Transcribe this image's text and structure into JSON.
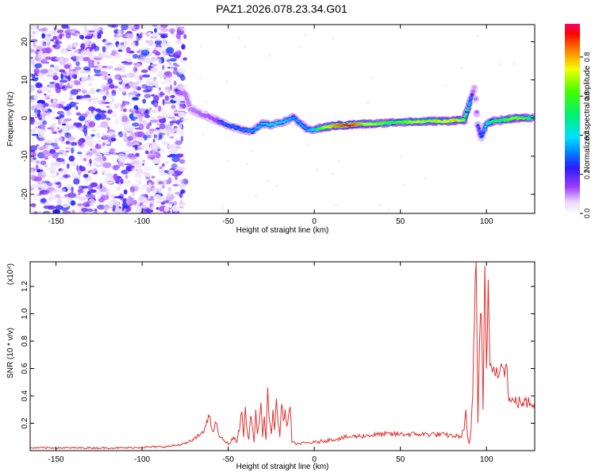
{
  "title": "PAZ1.2026.078.23.34.G01",
  "chart_data": [
    {
      "type": "heatmap",
      "xlabel": "Height of straight line (km)",
      "ylabel": "Frequency (Hz)",
      "xlim": [
        -165,
        128
      ],
      "ylim": [
        -25,
        24.5
      ],
      "xticks": [
        -150,
        -100,
        -50,
        0,
        50,
        100
      ],
      "yticks": [
        -20,
        -10,
        0,
        10,
        20
      ],
      "colorbar": {
        "label": "Normalized spectral amplitude",
        "range": [
          0,
          0.97
        ],
        "ticks": [
          "0.0",
          "0.2",
          "0.4",
          "0.6",
          "0.8"
        ],
        "colormap": "rainbow (white-violet-blue-cyan-green-yellow-red-magenta)"
      },
      "noise_region": [
        -165,
        -75
      ],
      "ridge": [
        {
          "x": -80,
          "f": 7.0,
          "a": 0.3
        },
        {
          "x": -75,
          "f": 6.5,
          "a": 0.25
        },
        {
          "x": -72,
          "f": 2.5,
          "a": 0.22
        },
        {
          "x": -68,
          "f": 1.5,
          "a": 0.25
        },
        {
          "x": -62,
          "f": 0.5,
          "a": 0.28
        },
        {
          "x": -55,
          "f": -1.0,
          "a": 0.3
        },
        {
          "x": -48,
          "f": -2.2,
          "a": 0.3
        },
        {
          "x": -42,
          "f": -3.0,
          "a": 0.32
        },
        {
          "x": -36,
          "f": -3.5,
          "a": 0.35
        },
        {
          "x": -30,
          "f": -1.5,
          "a": 0.4
        },
        {
          "x": -25,
          "f": -1.8,
          "a": 0.45
        },
        {
          "x": -18,
          "f": -1.0,
          "a": 0.4
        },
        {
          "x": -12,
          "f": 0.2,
          "a": 0.35
        },
        {
          "x": -8,
          "f": -1.5,
          "a": 0.35
        },
        {
          "x": -4,
          "f": -3.0,
          "a": 0.35
        },
        {
          "x": 0,
          "f": -3.0,
          "a": 0.45
        },
        {
          "x": 5,
          "f": -2.5,
          "a": 0.7
        },
        {
          "x": 12,
          "f": -2.0,
          "a": 0.85
        },
        {
          "x": 20,
          "f": -1.8,
          "a": 0.95
        },
        {
          "x": 28,
          "f": -1.6,
          "a": 0.8
        },
        {
          "x": 36,
          "f": -1.5,
          "a": 0.7
        },
        {
          "x": 44,
          "f": -1.2,
          "a": 0.6
        },
        {
          "x": 52,
          "f": -1.0,
          "a": 0.65
        },
        {
          "x": 60,
          "f": -1.0,
          "a": 0.75
        },
        {
          "x": 68,
          "f": -0.8,
          "a": 0.7
        },
        {
          "x": 76,
          "f": -0.8,
          "a": 0.75
        },
        {
          "x": 82,
          "f": -0.6,
          "a": 0.8
        },
        {
          "x": 87,
          "f": -0.5,
          "a": 0.7
        },
        {
          "x": 91,
          "f": 5.0,
          "a": 0.35
        },
        {
          "x": 93,
          "f": 8.0,
          "a": 0.2
        },
        {
          "x": 95,
          "f": -2.0,
          "a": 0.3
        },
        {
          "x": 97,
          "f": -5.0,
          "a": 0.3
        },
        {
          "x": 100,
          "f": -1.5,
          "a": 0.45
        },
        {
          "x": 104,
          "f": -0.8,
          "a": 0.55
        },
        {
          "x": 110,
          "f": -0.5,
          "a": 0.6
        },
        {
          "x": 116,
          "f": 0.0,
          "a": 0.7
        },
        {
          "x": 122,
          "f": 0.0,
          "a": 0.65
        },
        {
          "x": 127,
          "f": 0.0,
          "a": 0.5
        }
      ]
    },
    {
      "type": "line",
      "xlabel": "Height of straight line (km)",
      "ylabel": "SNR (10 * v/v)",
      "yscale_label": "(x10⁴)",
      "xlim": [
        -165,
        128
      ],
      "ylim": [
        0,
        1.38
      ],
      "xticks": [
        -150,
        -100,
        -50,
        0,
        50,
        100
      ],
      "yticks": [
        0.2,
        0.4,
        0.6,
        0.8,
        1.0,
        1.2
      ],
      "color": "#e03030",
      "series": [
        {
          "x": [
            -165,
            -140,
            -110,
            -85,
            -75,
            -70,
            -66,
            -63,
            -61,
            -59,
            -57,
            -55,
            -53,
            -51,
            -49,
            -47,
            -45,
            -43,
            -42,
            -41,
            -40,
            -39,
            -38,
            -37,
            -36,
            -35,
            -34,
            -33,
            -32,
            -31,
            -30,
            -29,
            -28,
            -27,
            -26,
            -25,
            -24,
            -23,
            -22,
            -21,
            -20,
            -19,
            -18,
            -17,
            -16,
            -15,
            -14,
            -13,
            -10,
            0,
            10,
            20,
            30,
            40,
            50,
            60,
            70,
            80,
            85,
            87,
            88,
            89,
            90,
            91,
            92,
            93,
            94,
            95,
            96,
            97,
            98,
            99,
            100,
            101,
            102,
            104,
            106,
            108,
            110,
            111,
            112,
            113,
            114,
            116,
            120,
            124,
            128
          ],
          "y": [
            0.02,
            0.02,
            0.02,
            0.03,
            0.05,
            0.08,
            0.12,
            0.18,
            0.25,
            0.14,
            0.2,
            0.1,
            0.08,
            0.06,
            0.05,
            0.1,
            0.06,
            0.2,
            0.28,
            0.1,
            0.32,
            0.15,
            0.08,
            0.25,
            0.18,
            0.06,
            0.3,
            0.12,
            0.2,
            0.35,
            0.1,
            0.25,
            0.08,
            0.46,
            0.22,
            0.12,
            0.3,
            0.15,
            0.38,
            0.2,
            0.1,
            0.34,
            0.22,
            0.3,
            0.18,
            0.25,
            0.32,
            0.06,
            0.05,
            0.06,
            0.08,
            0.1,
            0.11,
            0.12,
            0.12,
            0.12,
            0.12,
            0.11,
            0.1,
            0.15,
            0.3,
            0.1,
            0.05,
            0.15,
            0.4,
            0.95,
            1.38,
            0.2,
            0.8,
            1.0,
            0.3,
            1.35,
            0.6,
            1.25,
            0.62,
            0.61,
            0.61,
            0.6,
            0.6,
            0.61,
            0.6,
            0.36,
            0.36,
            0.36,
            0.35,
            0.35,
            0.35
          ]
        }
      ]
    }
  ]
}
